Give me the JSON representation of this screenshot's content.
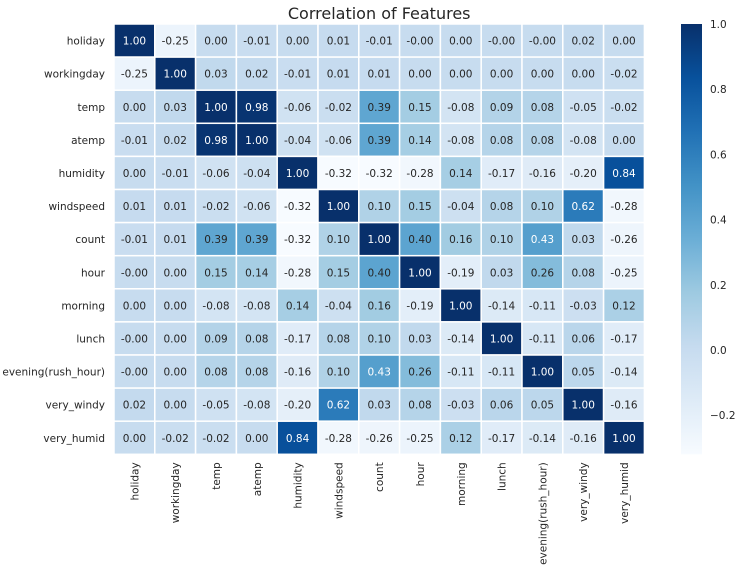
{
  "chart_data": {
    "type": "heatmap",
    "title": "Correlation of Features",
    "xlabel": "",
    "ylabel": "",
    "rows": [
      "holiday",
      "workingday",
      "temp",
      "atemp",
      "humidity",
      "windspeed",
      "count",
      "hour",
      "morning",
      "lunch",
      "evening(rush_hour)",
      "very_windy",
      "very_humid"
    ],
    "columns": [
      "holiday",
      "workingday",
      "temp",
      "atemp",
      "humidity",
      "windspeed",
      "count",
      "hour",
      "morning",
      "lunch",
      "evening(rush_hour)",
      "very_windy",
      "very_humid"
    ],
    "values": [
      [
        1.0,
        -0.25,
        0.0,
        -0.01,
        0.0,
        0.01,
        -0.01,
        -0.0,
        0.0,
        -0.0,
        -0.0,
        0.02,
        0.0
      ],
      [
        -0.25,
        1.0,
        0.03,
        0.02,
        -0.01,
        0.01,
        0.01,
        0.0,
        0.0,
        0.0,
        0.0,
        0.0,
        -0.02
      ],
      [
        0.0,
        0.03,
        1.0,
        0.98,
        -0.06,
        -0.02,
        0.39,
        0.15,
        -0.08,
        0.09,
        0.08,
        -0.05,
        -0.02
      ],
      [
        -0.01,
        0.02,
        0.98,
        1.0,
        -0.04,
        -0.06,
        0.39,
        0.14,
        -0.08,
        0.08,
        0.08,
        -0.08,
        0.0
      ],
      [
        0.0,
        -0.01,
        -0.06,
        -0.04,
        1.0,
        -0.32,
        -0.32,
        -0.28,
        0.14,
        -0.17,
        -0.16,
        -0.2,
        0.84
      ],
      [
        0.01,
        0.01,
        -0.02,
        -0.06,
        -0.32,
        1.0,
        0.1,
        0.15,
        -0.04,
        0.08,
        0.1,
        0.62,
        -0.28
      ],
      [
        -0.01,
        0.01,
        0.39,
        0.39,
        -0.32,
        0.1,
        1.0,
        0.4,
        0.16,
        0.1,
        0.43,
        0.03,
        -0.26
      ],
      [
        -0.0,
        0.0,
        0.15,
        0.14,
        -0.28,
        0.15,
        0.4,
        1.0,
        -0.19,
        0.03,
        0.26,
        0.08,
        -0.25
      ],
      [
        0.0,
        0.0,
        -0.08,
        -0.08,
        0.14,
        -0.04,
        0.16,
        -0.19,
        1.0,
        -0.14,
        -0.11,
        -0.03,
        0.12
      ],
      [
        -0.0,
        0.0,
        0.09,
        0.08,
        -0.17,
        0.08,
        0.1,
        0.03,
        -0.14,
        1.0,
        -0.11,
        0.06,
        -0.17
      ],
      [
        -0.0,
        0.0,
        0.08,
        0.08,
        -0.16,
        0.1,
        0.43,
        0.26,
        -0.11,
        -0.11,
        1.0,
        0.05,
        -0.14
      ],
      [
        0.02,
        0.0,
        -0.05,
        -0.08,
        -0.2,
        0.62,
        0.03,
        0.08,
        -0.03,
        0.06,
        0.05,
        1.0,
        -0.16
      ],
      [
        0.0,
        -0.02,
        -0.02,
        0.0,
        0.84,
        -0.28,
        -0.26,
        -0.25,
        0.12,
        -0.17,
        -0.14,
        -0.16,
        1.0
      ]
    ],
    "value_format": "0.00",
    "annotated": true,
    "colormap": "Blues",
    "color_range": [
      -0.32,
      1.0
    ],
    "colorbar": {
      "ticks": [
        -0.2,
        0.0,
        0.2,
        0.4,
        0.6,
        0.8,
        1.0
      ],
      "tick_labels": [
        "−0.2",
        "0.0",
        "0.2",
        "0.4",
        "0.6",
        "0.8",
        "1.0"
      ],
      "placement": "right"
    },
    "cell_border_color": "#ffffff",
    "grid": false
  }
}
